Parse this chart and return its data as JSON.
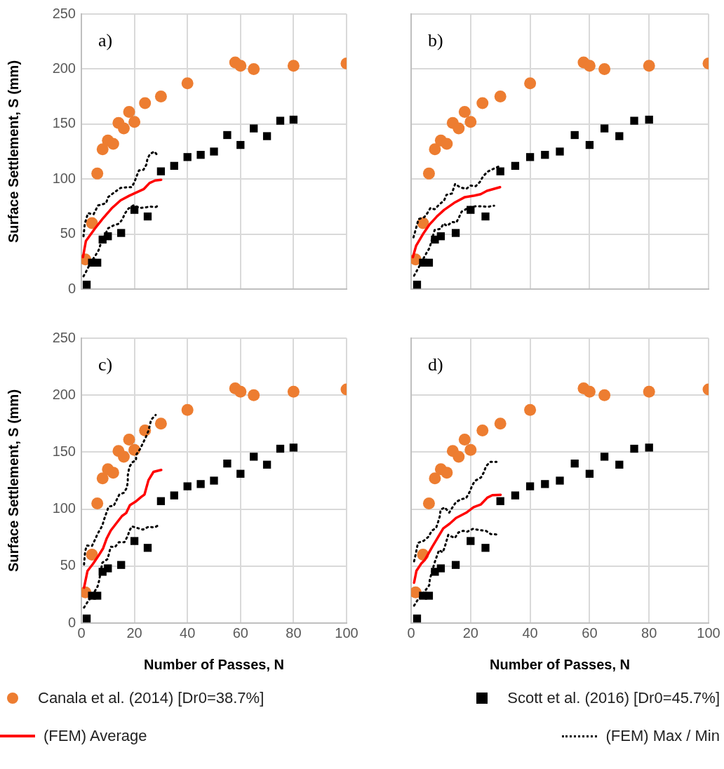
{
  "chart_data": [
    {
      "type": "scatter",
      "annotations": [
        "a)"
      ],
      "ylabel": "Surface Settlement, S (mm)",
      "xlim": [
        0,
        100
      ],
      "xticks": [
        0,
        20,
        40,
        60,
        80,
        100
      ],
      "ylim": [
        0,
        250
      ],
      "yticks": [
        0,
        50,
        100,
        150,
        200,
        250
      ],
      "grid": true,
      "legend": false,
      "tick_labels": "y",
      "series": [
        {
          "type": "scatter",
          "marker": "circle",
          "color": "#ed7d31",
          "x": [
            1.5,
            4,
            6,
            8,
            10,
            12,
            14,
            16,
            18,
            20,
            24,
            30,
            40,
            58,
            60,
            65,
            80,
            100
          ],
          "values": [
            27,
            60,
            105,
            127,
            135,
            132,
            151,
            146,
            161,
            152,
            169,
            175,
            187,
            206,
            203,
            200,
            203,
            205
          ]
        },
        {
          "type": "scatter",
          "marker": "square",
          "color": "#000000",
          "x": [
            2,
            4,
            6,
            8,
            10,
            15,
            20,
            25,
            30,
            35,
            40,
            45,
            50,
            55,
            60,
            65,
            70,
            75,
            80
          ],
          "values": [
            4,
            24,
            24,
            45,
            48,
            51,
            72,
            66,
            107,
            112,
            120,
            122,
            125,
            140,
            131,
            146,
            139,
            153,
            154
          ]
        },
        {
          "type": "line",
          "marker": "none",
          "line_style": "solid",
          "color": "#ff0000",
          "x": [
            0.6,
            1.7,
            5.1,
            8,
            11.4,
            14.8,
            18.1,
            23.6,
            25.7,
            27.8,
            30.1
          ],
          "values": [
            29,
            43.7,
            55,
            63.9,
            73.3,
            80.7,
            84.9,
            91,
            96.4,
            98.7,
            99.4
          ]
        },
        {
          "type": "line",
          "marker": "none",
          "line_style": "dotted",
          "color": "#000000",
          "x": [
            0.8,
            1.3,
            2.5,
            4.6,
            6.3,
            9.3,
            10.1,
            11.8,
            14.8,
            17.7,
            19,
            20,
            20.8,
            21.7,
            23.4,
            24.5,
            24.9,
            25.9,
            27.6,
            29
          ],
          "values": [
            48,
            59.5,
            69,
            68,
            76,
            78,
            83.6,
            86.8,
            92,
            92.6,
            92.6,
            97.3,
            102.5,
            107.8,
            108.4,
            113,
            118.3,
            122.9,
            125,
            120.4
          ]
        },
        {
          "type": "line",
          "marker": "none",
          "line_style": "dotted",
          "color": "#000000",
          "x": [
            0.8,
            1.9,
            3.4,
            5.3,
            6.5,
            7.2,
            10.1,
            12.1,
            14.2,
            15.4,
            16.5,
            17.7,
            19.8,
            21.9,
            24.1,
            25.9,
            28.1,
            29.5
          ],
          "values": [
            11.6,
            16.4,
            23.7,
            30.5,
            35.3,
            40.5,
            55.3,
            57.8,
            59.5,
            63.2,
            69,
            73,
            76.3,
            73.7,
            74.2,
            75,
            74.6,
            76.7
          ]
        }
      ]
    },
    {
      "type": "scatter",
      "annotations": [
        "b)"
      ],
      "xlim": [
        0,
        100
      ],
      "xticks": [
        0,
        20,
        40,
        60,
        80,
        100
      ],
      "ylim": [
        0,
        250
      ],
      "yticks": [
        0,
        50,
        100,
        150,
        200,
        250
      ],
      "grid": true,
      "legend": false,
      "tick_labels": false,
      "series": [
        {
          "type": "scatter",
          "marker": "circle",
          "color": "#ed7d31",
          "x": [
            1.5,
            4,
            6,
            8,
            10,
            12,
            14,
            16,
            18,
            20,
            24,
            30,
            40,
            58,
            60,
            65,
            80,
            100
          ],
          "values": [
            27,
            60,
            105,
            127,
            135,
            132,
            151,
            146,
            161,
            152,
            169,
            175,
            187,
            206,
            203,
            200,
            203,
            205
          ]
        },
        {
          "type": "scatter",
          "marker": "square",
          "color": "#000000",
          "x": [
            2,
            4,
            6,
            8,
            10,
            15,
            20,
            25,
            30,
            35,
            40,
            45,
            50,
            55,
            60,
            65,
            70,
            75,
            80
          ],
          "values": [
            4,
            24,
            24,
            45,
            48,
            51,
            72,
            66,
            107,
            112,
            120,
            122,
            125,
            140,
            131,
            146,
            139,
            153,
            154
          ]
        },
        {
          "type": "line",
          "marker": "none",
          "line_style": "solid",
          "color": "#ff0000",
          "x": [
            0.6,
            1.7,
            4,
            6.1,
            8.6,
            11.1,
            14.5,
            18.1,
            21.3,
            23.4,
            25.5,
            29.9
          ],
          "values": [
            29,
            39.5,
            50,
            58.4,
            65.8,
            72,
            78.4,
            83.6,
            85,
            86.3,
            89.3,
            92.6
          ]
        },
        {
          "type": "line",
          "marker": "none",
          "line_style": "dotted",
          "color": "#000000",
          "x": [
            0.8,
            1.4,
            2.5,
            4.4,
            5.4,
            6.5,
            7.9,
            9.4,
            11.1,
            11.9,
            13.7,
            14.8,
            16.4,
            18.5,
            20,
            21.7,
            23.1,
            24.2,
            25.7,
            27.6,
            29.9
          ],
          "values": [
            47,
            52.7,
            63.6,
            65.3,
            68.7,
            73.7,
            72.5,
            76.7,
            80.5,
            85.7,
            86.8,
            95.6,
            92.6,
            91,
            94.1,
            93.5,
            97.3,
            102.5,
            106.7,
            109.2,
            112
          ]
        },
        {
          "type": "line",
          "marker": "none",
          "line_style": "dotted",
          "color": "#000000",
          "x": [
            1,
            2,
            5,
            6.2,
            7.9,
            9.9,
            10.9,
            12.1,
            13.7,
            15.2,
            16.2,
            17,
            19.5,
            21.6,
            23.8,
            25.8,
            27.9
          ],
          "values": [
            12.2,
            17,
            32,
            37.4,
            53.6,
            54.8,
            59.5,
            57.4,
            61,
            60.5,
            65.8,
            70.4,
            74.2,
            75.2,
            75.2,
            74.8,
            75.8
          ]
        }
      ]
    },
    {
      "type": "scatter",
      "annotations": [
        "c)"
      ],
      "xlabel": "Number of Passes, N",
      "ylabel": "Surface Settlement, S (mm)",
      "xlim": [
        0,
        100
      ],
      "xticks": [
        0,
        20,
        40,
        60,
        80,
        100
      ],
      "ylim": [
        0,
        250
      ],
      "yticks": [
        0,
        50,
        100,
        150,
        200,
        250
      ],
      "grid": true,
      "legend": "bottom",
      "series": [
        {
          "type": "scatter",
          "name": "Canala et al. (2014) [Dr0=38.7%]",
          "marker": "circle",
          "color": "#ed7d31",
          "x": [
            1.5,
            4,
            6,
            8,
            10,
            12,
            14,
            16,
            18,
            20,
            24,
            30,
            40,
            58,
            60,
            65,
            80,
            100
          ],
          "values": [
            27,
            60,
            105,
            127,
            135,
            132,
            151,
            146,
            161,
            152,
            169,
            175,
            187,
            206,
            203,
            200,
            203,
            205
          ]
        },
        {
          "type": "scatter",
          "name": "Scott et al. (2016) [Dr0=45.7%]",
          "marker": "square",
          "color": "#000000",
          "x": [
            2,
            4,
            6,
            8,
            10,
            15,
            20,
            25,
            30,
            35,
            40,
            45,
            50,
            55,
            60,
            65,
            70,
            75,
            80
          ],
          "values": [
            4,
            24,
            24,
            45,
            48,
            51,
            72,
            66,
            107,
            112,
            120,
            122,
            125,
            140,
            131,
            146,
            139,
            153,
            154
          ]
        },
        {
          "type": "line",
          "name": "(FEM) Average",
          "marker": "none",
          "line_style": "solid",
          "color": "#ff0000",
          "x": [
            1,
            2.3,
            4.4,
            6.5,
            8.2,
            9.5,
            11.1,
            13.2,
            15.3,
            16.9,
            18.3,
            20.4,
            22.6,
            23.8,
            25.3,
            27.2,
            30.1
          ],
          "values": [
            31,
            45.7,
            52,
            59.3,
            65.6,
            74,
            81.3,
            87.6,
            93.9,
            96.6,
            103.4,
            106.5,
            110.7,
            112.8,
            125.4,
            132.7,
            134.4
          ]
        },
        {
          "type": "line",
          "name": "(FEM) Max / Min",
          "marker": "none",
          "line_style": "dotted",
          "color": "#000000",
          "x": [
            1,
            1.4,
            2,
            4,
            5.1,
            6.1,
            7.9,
            8.6,
            9.5,
            10.3,
            12.2,
            14.3,
            16,
            17.2,
            17.5,
            17.5,
            18.1,
            19.2,
            20.6,
            20.7,
            22.1,
            23.2,
            24.2,
            25.3,
            26.3,
            28
          ],
          "values": [
            51.4,
            62.5,
            68,
            67.7,
            73,
            78.2,
            85.5,
            91.2,
            97.1,
            102.3,
            102.9,
            112.8,
            114.3,
            119,
            124.7,
            129.6,
            136.9,
            141.1,
            142.8,
            147.8,
            152.6,
            157.9,
            162.5,
            168.8,
            178.4,
            182.6
          ]
        },
        {
          "type": "line",
          "marker": "none",
          "line_style": "dotted",
          "color": "#000000",
          "x": [
            1,
            2.3,
            4,
            6.1,
            6.7,
            7.9,
            9.9,
            10.5,
            11.1,
            12.7,
            14.1,
            16.2,
            17.5,
            18.1,
            19,
            21.1,
            23.2,
            25.3,
            27.6,
            29.4
          ],
          "values": [
            13.6,
            18.4,
            23.7,
            32,
            37.3,
            53,
            56.2,
            61.8,
            67,
            66.7,
            70.9,
            70.9,
            76.5,
            80.9,
            84.9,
            83.4,
            82,
            84.5,
            83.9,
            86.2
          ]
        }
      ]
    },
    {
      "type": "scatter",
      "annotations": [
        "d)"
      ],
      "xlabel": "Number of Passes, N",
      "xlim": [
        0,
        100
      ],
      "xticks": [
        0,
        20,
        40,
        60,
        80,
        100
      ],
      "ylim": [
        0,
        250
      ],
      "yticks": [
        0,
        50,
        100,
        150,
        200,
        250
      ],
      "grid": true,
      "legend": false,
      "tick_labels": "x",
      "series": [
        {
          "type": "scatter",
          "marker": "circle",
          "color": "#ed7d31",
          "x": [
            1.5,
            4,
            6,
            8,
            10,
            12,
            14,
            16,
            18,
            20,
            24,
            30,
            40,
            58,
            60,
            65,
            80,
            100
          ],
          "values": [
            27,
            60,
            105,
            127,
            135,
            132,
            151,
            146,
            161,
            152,
            169,
            175,
            187,
            206,
            203,
            200,
            203,
            205
          ]
        },
        {
          "type": "scatter",
          "marker": "square",
          "color": "#000000",
          "x": [
            2,
            4,
            6,
            8,
            10,
            15,
            20,
            25,
            30,
            35,
            40,
            45,
            50,
            55,
            60,
            65,
            70,
            75,
            80
          ],
          "values": [
            4,
            24,
            24,
            45,
            48,
            51,
            72,
            66,
            107,
            112,
            120,
            122,
            125,
            140,
            131,
            146,
            139,
            153,
            154
          ]
        },
        {
          "type": "line",
          "marker": "none",
          "line_style": "solid",
          "color": "#ff0000",
          "x": [
            1,
            1.8,
            3.4,
            4.6,
            7.1,
            8.8,
            10.8,
            13,
            15.1,
            18.5,
            21,
            23.5,
            25.6,
            27.3,
            30.1
          ],
          "values": [
            35.4,
            45.9,
            52.2,
            55.4,
            66.9,
            74.3,
            83.1,
            87.3,
            92.2,
            96.8,
            101.7,
            104.2,
            110,
            112.2,
            112.6
          ]
        },
        {
          "type": "line",
          "marker": "none",
          "line_style": "dotted",
          "color": "#000000",
          "x": [
            1,
            1.5,
            2.3,
            4.2,
            5.9,
            6.9,
            8.4,
            9.1,
            9.7,
            9.9,
            11.3,
            12.8,
            13.9,
            15.1,
            16.8,
            18.5,
            19.6,
            20.4,
            21.4,
            23.5,
            24.4,
            25.2,
            26.6,
            28.7
          ],
          "values": [
            54.2,
            59.9,
            70.4,
            72.1,
            75.9,
            80.9,
            83.5,
            88.9,
            94.2,
            99.4,
            101.5,
            96.9,
            101.5,
            106.2,
            108.7,
            109.6,
            114.7,
            119.9,
            124.7,
            127.8,
            132,
            137.7,
            141.5,
            141.5
          ]
        },
        {
          "type": "line",
          "marker": "none",
          "line_style": "dotted",
          "color": "#000000",
          "x": [
            1,
            2.1,
            3.4,
            6.1,
            6.3,
            7.9,
            8.7,
            9.4,
            10.6,
            11.2,
            12.5,
            13.6,
            14.7,
            15.9,
            17.5,
            18.9,
            20.8,
            22.9,
            25.1,
            26.8,
            28.7
          ],
          "values": [
            15.3,
            19.9,
            23.7,
            33.2,
            38.4,
            53.1,
            59,
            64.1,
            62,
            65.8,
            77.4,
            75.9,
            74.6,
            79.5,
            81,
            80.2,
            82.7,
            81.6,
            81,
            78,
            77.8
          ]
        }
      ]
    }
  ]
}
